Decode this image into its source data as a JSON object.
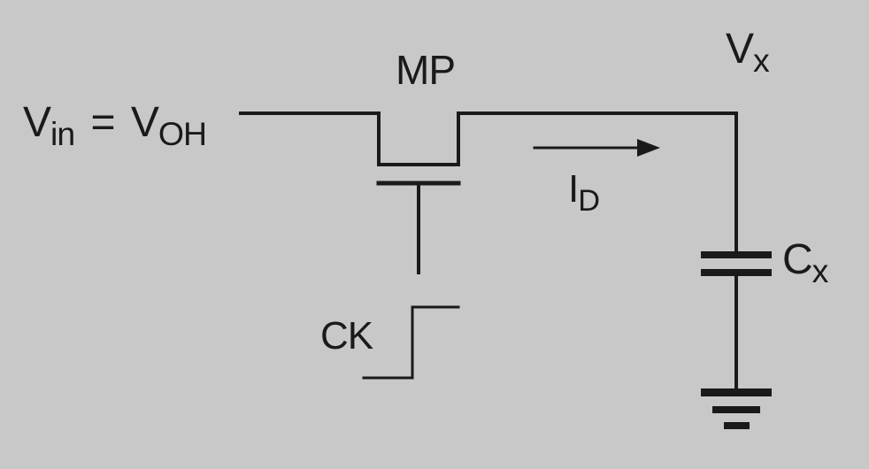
{
  "labels": {
    "vin_main": "V",
    "vin_sub": "in",
    "equals": "=",
    "voh_main": "V",
    "voh_sub": "OH",
    "transistor": "MP",
    "vx_main": "V",
    "vx_sub": "x",
    "current_main": "I",
    "current_sub": "D",
    "cap_main": "C",
    "cap_sub": "x",
    "clock": "CK"
  },
  "colors": {
    "background": "#c8c8c8",
    "ink": "#1a1a1a"
  }
}
